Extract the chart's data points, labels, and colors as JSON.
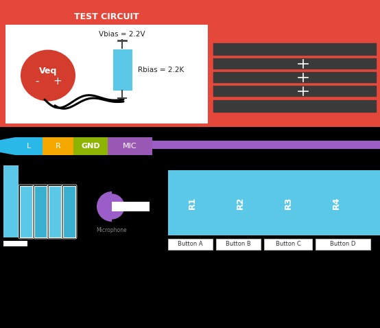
{
  "bg_color": "#000000",
  "red_bg": "#E5473A",
  "black_section": "#000000",
  "purple_bar": "#9B5EC8",
  "cyan_color": "#5BC8E8",
  "cyan_dark": "#3AB0D0",
  "white_color": "#FFFFFF",
  "title": "TEST CIRCUIT",
  "vbias_label": "Vbias = 2.2V",
  "rbias_label": "Rbias = 2.2K",
  "veq_label": "Veq",
  "connector_labels": [
    "L",
    "R",
    "GND",
    "MIC"
  ],
  "connector_colors": [
    "#29B8E8",
    "#F5A800",
    "#8CB400",
    "#9B59B6"
  ],
  "resistor_labels": [
    "R1",
    "R2",
    "R3",
    "R4"
  ],
  "button_labels": [
    "Button A",
    "Button B",
    "Button C",
    "Button D"
  ],
  "row_color": "#3A3A3A",
  "fig_w": 5.54,
  "fig_h": 4.78,
  "dpi": 100
}
